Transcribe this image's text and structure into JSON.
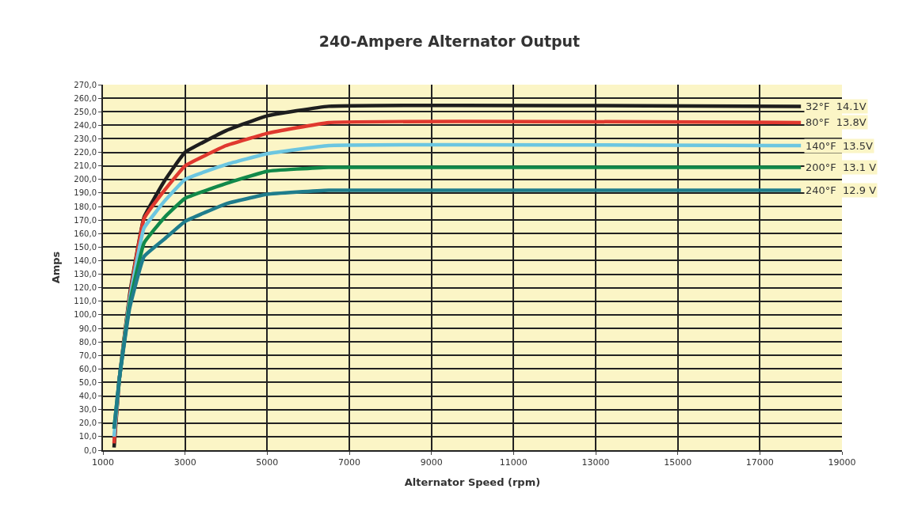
{
  "chart_data": {
    "type": "line",
    "title": "240-Ampere Alternator Output",
    "xlabel": "Alternator Speed (rpm)",
    "ylabel": "Amps",
    "xlim": [
      1000,
      19000
    ],
    "xticks": [
      1000,
      3000,
      5000,
      7000,
      9000,
      11000,
      13000,
      15000,
      17000,
      19000
    ],
    "ylim": [
      0,
      270
    ],
    "yticks": [
      {
        "value": 0,
        "label": "0,0"
      },
      {
        "value": 10,
        "label": "10,0"
      },
      {
        "value": 20,
        "label": "20,0"
      },
      {
        "value": 30,
        "label": "30,0"
      },
      {
        "value": 40,
        "label": "40,0"
      },
      {
        "value": 50,
        "label": "50,0"
      },
      {
        "value": 60,
        "label": "60,0"
      },
      {
        "value": 70,
        "label": "70,0"
      },
      {
        "value": 80,
        "label": "80,0"
      },
      {
        "value": 90,
        "label": "90,0"
      },
      {
        "value": 100,
        "label": "100,0"
      },
      {
        "value": 110,
        "label": "110,0"
      },
      {
        "value": 120,
        "label": "120,0"
      },
      {
        "value": 130,
        "label": "130,0"
      },
      {
        "value": 140,
        "label": "140,0"
      },
      {
        "value": 150,
        "label": "150,0"
      },
      {
        "value": 160,
        "label": "160,0"
      },
      {
        "value": 170,
        "label": "170,0"
      },
      {
        "value": 180,
        "label": "180,0"
      },
      {
        "value": 190,
        "label": "190,0"
      },
      {
        "value": 200,
        "label": "200,0"
      },
      {
        "value": 210,
        "label": "210,0"
      },
      {
        "value": 220,
        "label": "220,0"
      },
      {
        "value": 230,
        "label": "230,0"
      },
      {
        "value": 240,
        "label": "240,0"
      },
      {
        "value": 250,
        "label": "250,0"
      },
      {
        "value": 260,
        "label": "260,0"
      },
      {
        "value": 270,
        "label": "270,0"
      }
    ],
    "grid": true,
    "marker": "none",
    "line_style": "solid",
    "x": [
      1270,
      1400,
      1650,
      2000,
      2500,
      3000,
      4000,
      5000,
      6500,
      18000
    ],
    "series": [
      {
        "name": "32°F  14.1V",
        "color": "#1e1e1e",
        "values": [
          2,
          53,
          115,
          172,
          199,
          220,
          236,
          247,
          254,
          254
        ]
      },
      {
        "name": "80°F  13.8V",
        "color": "#e0392f",
        "values": [
          5,
          53,
          113,
          171,
          192,
          210,
          225,
          234,
          242,
          242
        ]
      },
      {
        "name": "140°F  13.5V",
        "color": "#6cc6e0",
        "values": [
          10,
          53,
          111,
          164,
          184,
          200,
          211,
          219,
          225,
          225
        ]
      },
      {
        "name": "200°F  13.1 V",
        "color": "#11894a",
        "values": [
          16,
          53,
          108,
          153,
          172,
          186,
          197,
          206,
          209,
          209
        ]
      },
      {
        "name": "240°F  12.9 V",
        "color": "#1f7d8c",
        "values": [
          16,
          53,
          105,
          143,
          156,
          169,
          182,
          189,
          192,
          192
        ]
      }
    ]
  }
}
